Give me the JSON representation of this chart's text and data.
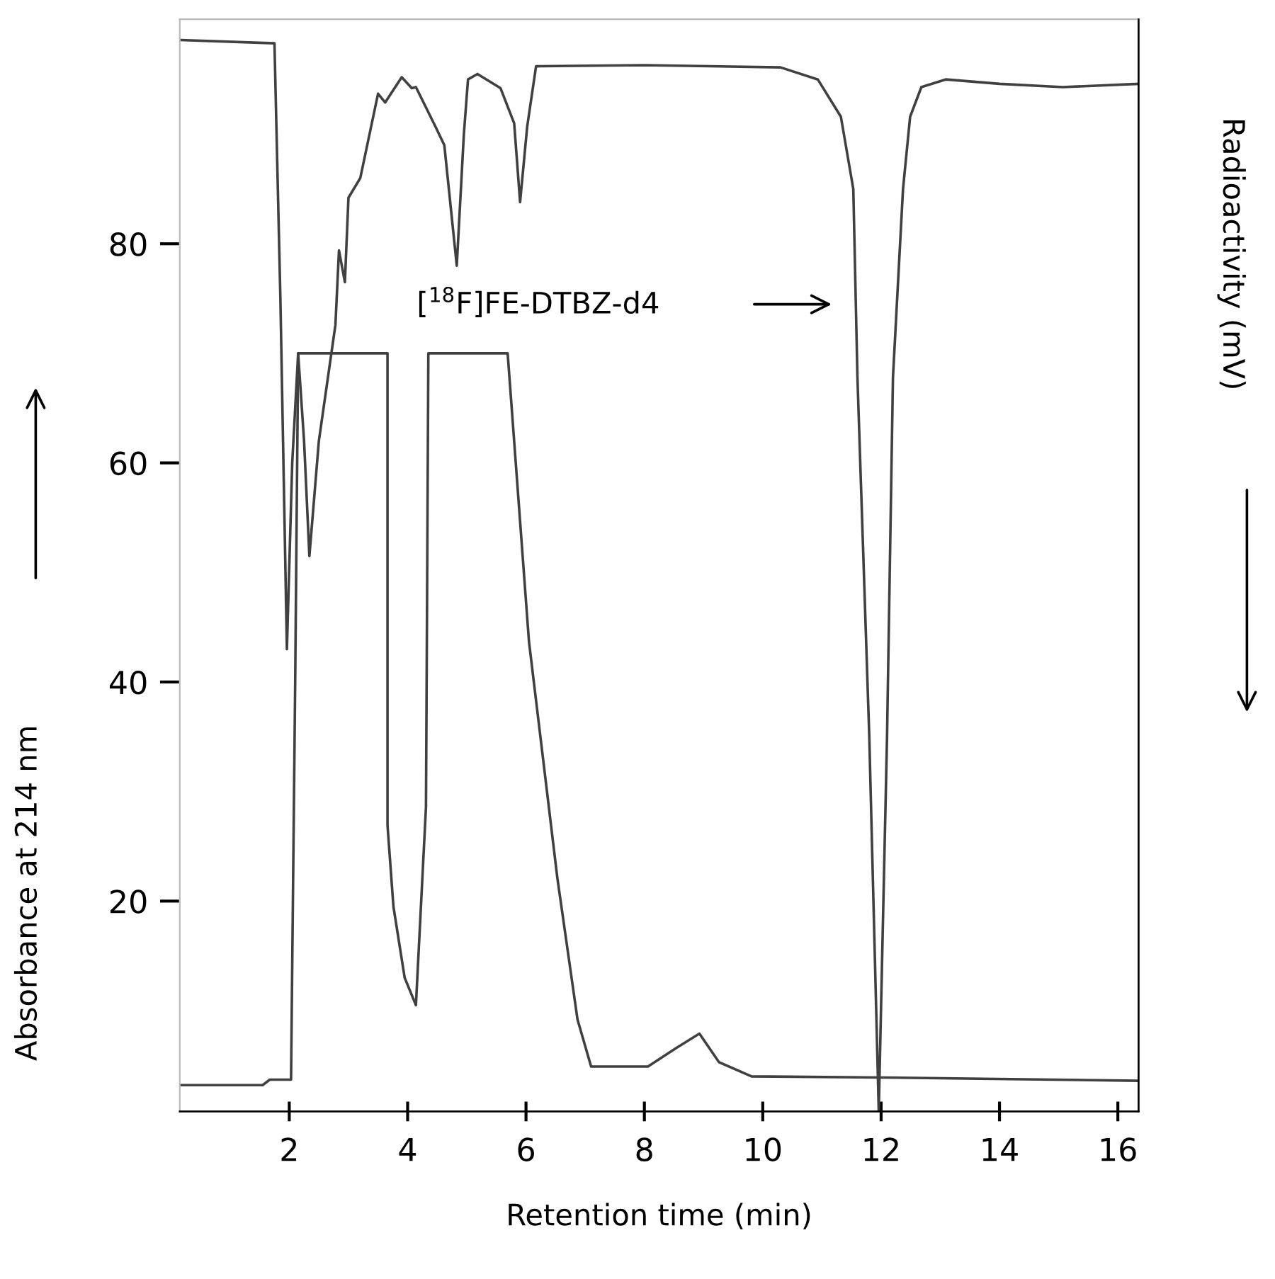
{
  "chart_data": {
    "type": "line",
    "xlabel": "Retention time (min)",
    "ylabel": "Absorbance at 214 nm",
    "y2label": "Radioactivity (mV)",
    "xlim": [
      0.15,
      16.35
    ],
    "xticks": [
      2,
      4,
      6,
      8,
      10,
      12,
      14,
      16
    ],
    "ylim": [
      0.8,
      100.5
    ],
    "yticks": [
      20,
      40,
      60,
      80
    ],
    "grid": false,
    "legend": false,
    "marker": "none",
    "line_style": "solid",
    "series": [
      {
        "color": "#404040",
        "x": [
          0.17,
          1.55,
          1.67,
          2.03,
          2.1,
          2.15,
          3.66,
          3.66,
          3.76,
          3.95,
          4.14,
          4.31,
          4.35,
          5.69,
          6.05,
          6.53,
          6.87,
          7.1,
          8.06,
          8.54,
          8.93,
          9.26,
          9.81,
          12.0,
          16.35
        ],
        "values": [
          3.2,
          3.2,
          3.7,
          3.7,
          40,
          70,
          70,
          26.9,
          19.5,
          13,
          10.5,
          28.6,
          70,
          70,
          43.7,
          22.1,
          9.2,
          4.9,
          4.9,
          6.6,
          7.9,
          5.3,
          4.0,
          3.9,
          3.6
        ]
      },
      {
        "color": "#404040",
        "x": [
          0.17,
          1.75,
          1.85,
          1.96,
          2.05,
          2.15,
          2.25,
          2.34,
          2.5,
          2.78,
          2.84,
          2.94,
          3.0,
          3.2,
          3.5,
          3.62,
          3.9,
          4.07,
          4.14,
          4.47,
          4.62,
          4.83,
          4.95,
          5.02,
          5.18,
          5.57,
          5.8,
          5.9,
          6.02,
          6.17,
          8.0,
          10.3,
          10.93,
          11.32,
          11.53,
          11.6,
          11.8,
          11.96,
          12.1,
          12.2,
          12.37,
          12.49,
          12.68,
          13.09,
          14.0,
          15.07,
          16.35
        ],
        "values": [
          98.6,
          98.3,
          75,
          43,
          60,
          70,
          62,
          51.5,
          62,
          72.6,
          79.4,
          76.5,
          84.2,
          86,
          93.7,
          92.9,
          95.2,
          94.2,
          94.3,
          90.7,
          89,
          78,
          90,
          95,
          95.5,
          94.2,
          91,
          83.8,
          90.7,
          96.2,
          96.3,
          96.1,
          95,
          91.6,
          85,
          67.8,
          35,
          0.8,
          35,
          67.8,
          85,
          91.6,
          94.3,
          95,
          94.6,
          94.3,
          94.6
        ]
      }
    ],
    "annotations": [
      "[$^{18}$F]FE-DTBZ-d4"
    ]
  }
}
